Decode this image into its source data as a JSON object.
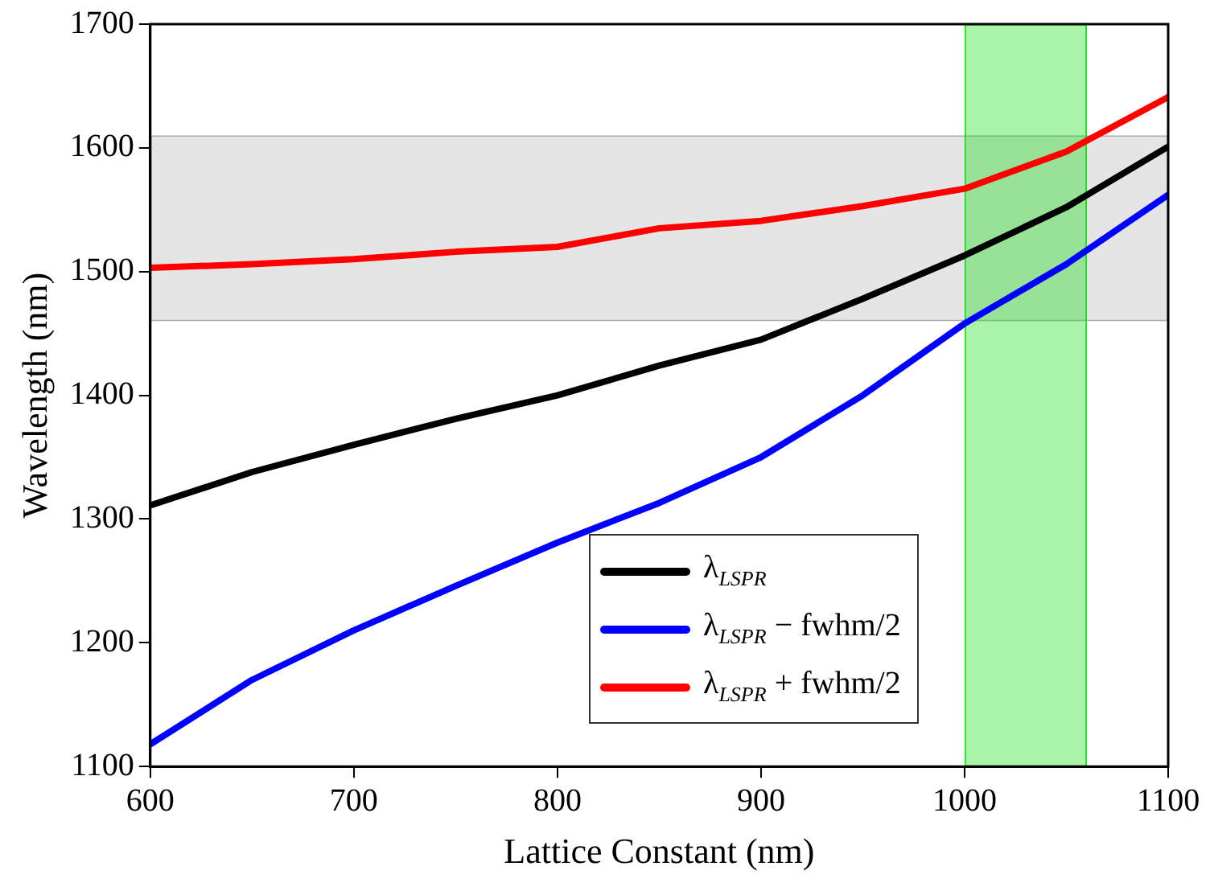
{
  "chart_data": {
    "type": "line",
    "xlabel": "Lattice Constant (nm)",
    "ylabel": "Wavelength (nm)",
    "x": [
      600,
      650,
      700,
      750,
      800,
      850,
      900,
      950,
      1000,
      1050,
      1100
    ],
    "series": [
      {
        "name": "λ$_{LSPR}$",
        "color": "#000000",
        "values": [
          1311,
          1338,
          1360,
          1381,
          1400,
          1424,
          1445,
          1478,
          1513,
          1552,
          1601
        ]
      },
      {
        "name": "λ$_{LSPR}$ − fwhm/2",
        "color": "#0000ff",
        "values": [
          1118,
          1170,
          1210,
          1246,
          1281,
          1313,
          1350,
          1400,
          1458,
          1506,
          1562
        ]
      },
      {
        "name": "λ$_{LSPR}$ + fwhm/2",
        "color": "#ff0000",
        "values": [
          1503,
          1506,
          1510,
          1516,
          1520,
          1535,
          1541,
          1553,
          1567,
          1597,
          1641
        ]
      }
    ],
    "xlim": [
      600,
      1100
    ],
    "xticks": [
      600,
      700,
      800,
      900,
      1000,
      1100
    ],
    "ylim": [
      1100,
      1700
    ],
    "yticks": [
      1100,
      1200,
      1300,
      1400,
      1500,
      1600,
      1700
    ],
    "bands": [
      {
        "axis": "y",
        "from": 1460,
        "to": 1610,
        "color": "#b0b0b0"
      },
      {
        "axis": "x",
        "from": 1000,
        "to": 1060,
        "color": "#00dd00"
      }
    ],
    "grid": false,
    "legend": "bottom",
    "marker": "none",
    "line_style": "solid"
  }
}
